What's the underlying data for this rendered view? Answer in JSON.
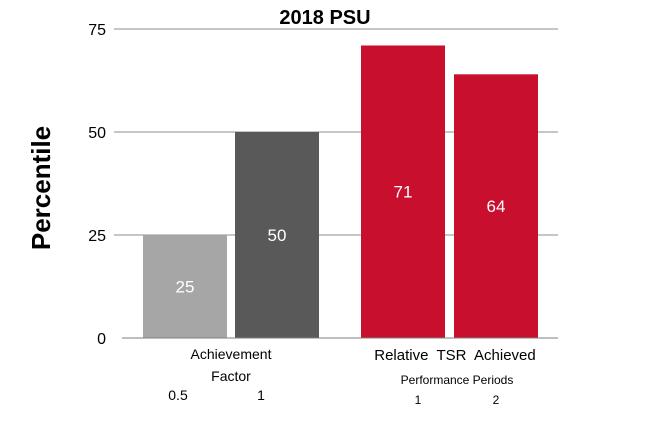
{
  "chart_data": {
    "type": "bar",
    "title": "2018 PSU",
    "ylabel": "Percentile",
    "ylim": [
      0,
      75
    ],
    "yticks": [
      "0",
      "25",
      "50",
      "75"
    ],
    "grid": true,
    "bars": [
      {
        "label": "25",
        "value": 25,
        "color": "#a6a6a6"
      },
      {
        "label": "50",
        "value": 50,
        "color": "#595959"
      },
      {
        "label": "71",
        "value": 71,
        "color": "#c8102e"
      },
      {
        "label": "64",
        "value": 64,
        "color": "#c8102e"
      }
    ],
    "groups": [
      {
        "label_line1": "Achievement",
        "label_line2": "Factor",
        "sub_ticks": [
          "0.5",
          "1"
        ]
      },
      {
        "label_line1": "Relative  TSR  Achieved",
        "label_line2": "Performance Periods",
        "sub_ticks": [
          "1",
          "2"
        ]
      }
    ]
  }
}
